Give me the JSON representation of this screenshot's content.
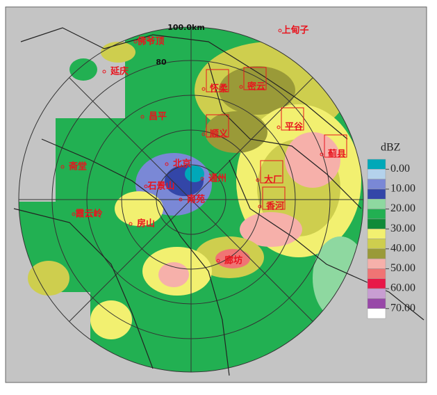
{
  "map": {
    "range_labels": [
      "100.0km",
      "80"
    ],
    "places": [
      "佛爷顶",
      "延庆",
      "上甸子",
      "怀柔",
      "密云",
      "昌平",
      "顺义",
      "平谷",
      "蓟县",
      "斋堂",
      "北京",
      "通州",
      "大厂",
      "石景山",
      "南苑",
      "香河",
      "霞云岭",
      "房山",
      "廊坊"
    ],
    "legend": {
      "unit": "dBZ",
      "bins": [
        -5,
        0,
        5,
        10,
        15,
        20,
        25,
        30,
        35,
        40,
        45,
        50,
        55,
        60,
        65,
        70,
        75
      ],
      "colors": [
        "#00a8b8",
        "#b4d2ec",
        "#7a88d6",
        "#3346a8",
        "#8ed8a0",
        "#22b052",
        "#108a38",
        "#f2f070",
        "#cece4e",
        "#9a9a38",
        "#f6b0aa",
        "#f07474",
        "#e81848",
        "#c89ed2",
        "#9848a8",
        "#ffffff"
      ],
      "ticks": [
        {
          "value": 0,
          "label": "0.00"
        },
        {
          "value": 10,
          "label": "10.00"
        },
        {
          "value": 20,
          "label": "20.00"
        },
        {
          "value": 30,
          "label": "30.00"
        },
        {
          "value": 40,
          "label": "40.00"
        },
        {
          "value": 50,
          "label": "50.00"
        },
        {
          "value": 60,
          "label": "60.00"
        },
        {
          "value": 70,
          "label": "70.00"
        }
      ]
    }
  }
}
